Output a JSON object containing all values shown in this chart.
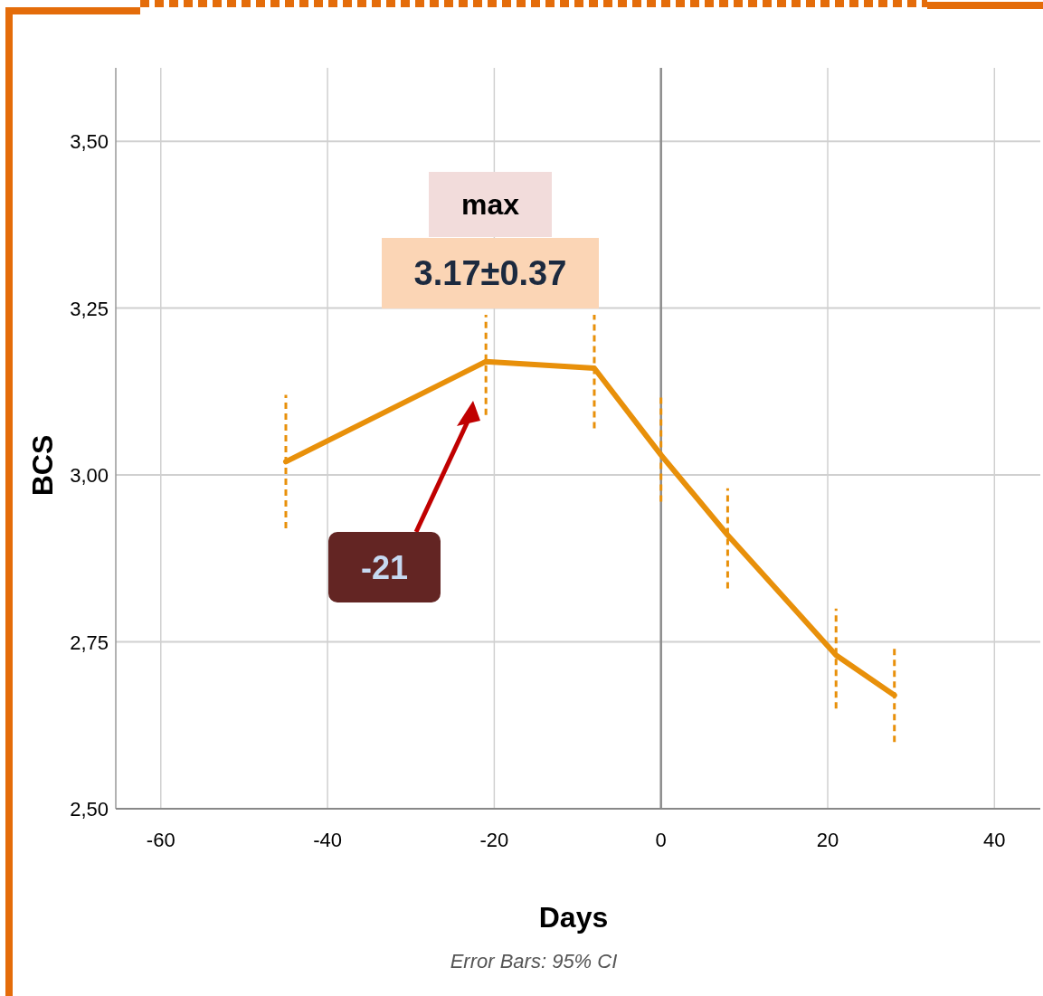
{
  "chart_data": {
    "type": "line",
    "xlabel": "Days",
    "ylabel": "BCS",
    "x": [
      -45,
      -21,
      -8,
      0,
      8,
      21,
      28
    ],
    "series": [
      {
        "color": "#e8900a",
        "values": [
          3.02,
          3.17,
          3.16,
          3.03,
          2.91,
          2.73,
          2.67
        ],
        "errors": [
          [
            2.92,
            3.12
          ],
          [
            3.09,
            3.24
          ],
          [
            3.07,
            3.24
          ],
          [
            2.96,
            3.12
          ],
          [
            2.83,
            2.98
          ],
          [
            2.65,
            2.8
          ],
          [
            2.6,
            2.74
          ]
        ]
      }
    ],
    "xlim": [
      -65.4,
      45.5
    ],
    "ylim": [
      2.5,
      3.61
    ],
    "xticks": [
      -60,
      -40,
      -20,
      0,
      20,
      40
    ],
    "yticks": [
      {
        "value": 2.5,
        "label": "2,50"
      },
      {
        "value": 2.75,
        "label": "2,75"
      },
      {
        "value": 3,
        "label": "3,00"
      },
      {
        "value": 3.25,
        "label": "3,25"
      },
      {
        "value": 3.5,
        "label": "3,50"
      }
    ],
    "grid": true,
    "marker": "none",
    "line_style": "solid",
    "ref_lines": [
      {
        "axis": "x",
        "value": 0,
        "color": "#8c8c8c"
      }
    ],
    "annotations": [
      "max",
      "3.17±0.37",
      "-21",
      "Error Bars: 95% CI"
    ]
  }
}
